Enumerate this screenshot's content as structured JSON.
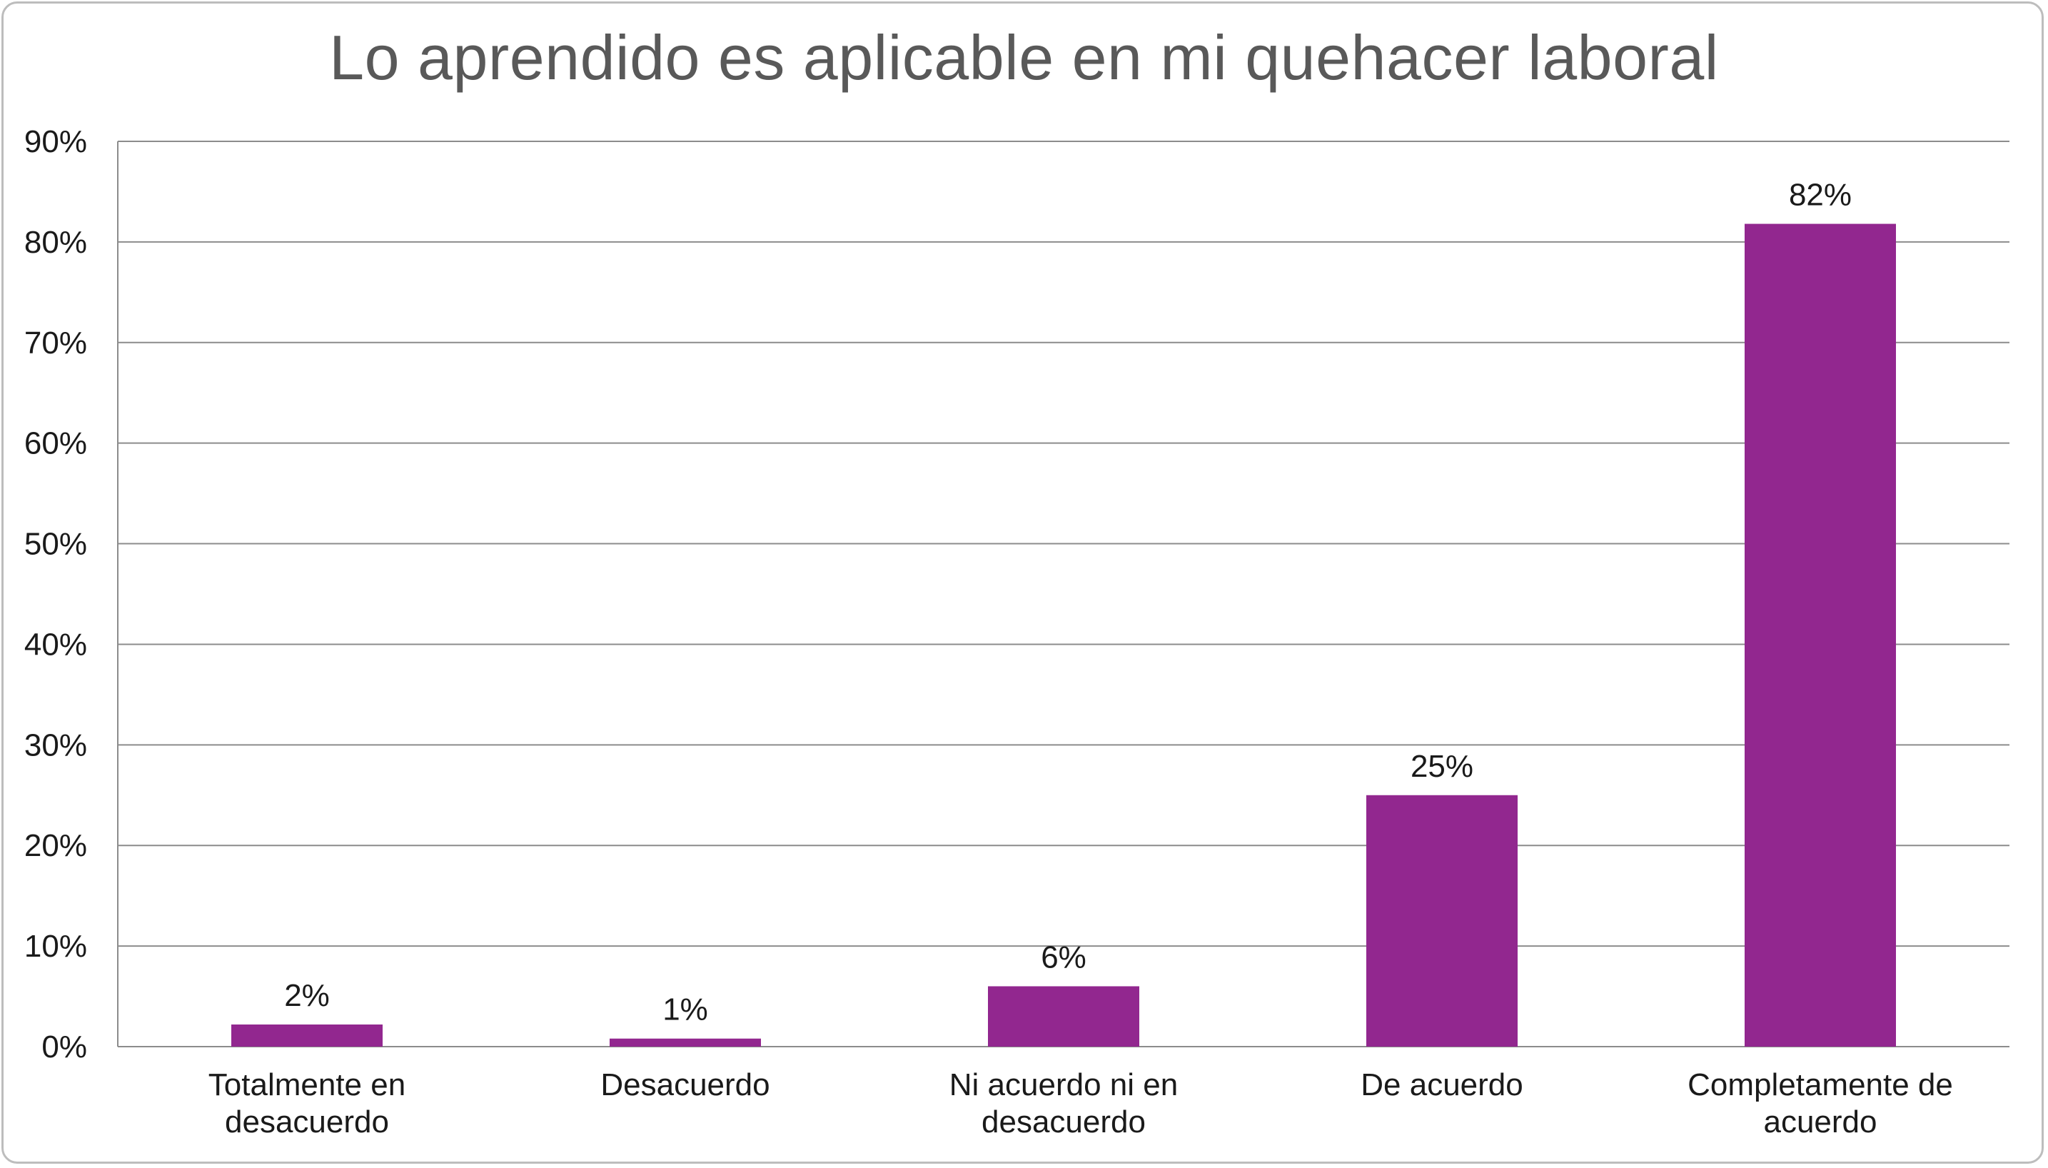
{
  "chart_data": {
    "type": "bar",
    "title": "Lo aprendido es aplicable en mi quehacer laboral",
    "xlabel": "",
    "ylabel": "",
    "categories": [
      [
        "Totalmente en",
        "desacuerdo"
      ],
      [
        "Desacuerdo"
      ],
      [
        "Ni acuerdo ni en",
        "desacuerdo"
      ],
      [
        "De acuerdo"
      ],
      [
        "Completamente de",
        "acuerdo"
      ]
    ],
    "values": [
      0.022,
      0.008,
      0.06,
      0.25,
      0.818
    ],
    "data_labels": [
      "2%",
      "1%",
      "6%",
      "25%",
      "82%"
    ],
    "ylim": [
      0,
      0.9
    ],
    "yticks": [
      0,
      0.1,
      0.2,
      0.3,
      0.4,
      0.5,
      0.6,
      0.7,
      0.8,
      0.9
    ],
    "ytick_labels": [
      "0%",
      "10%",
      "20%",
      "30%",
      "40%",
      "50%",
      "60%",
      "70%",
      "80%",
      "90%"
    ],
    "grid": true,
    "legend": "none",
    "bar_color": "#92278f",
    "grid_color": "#8c8c8c",
    "title_color": "#595959"
  }
}
